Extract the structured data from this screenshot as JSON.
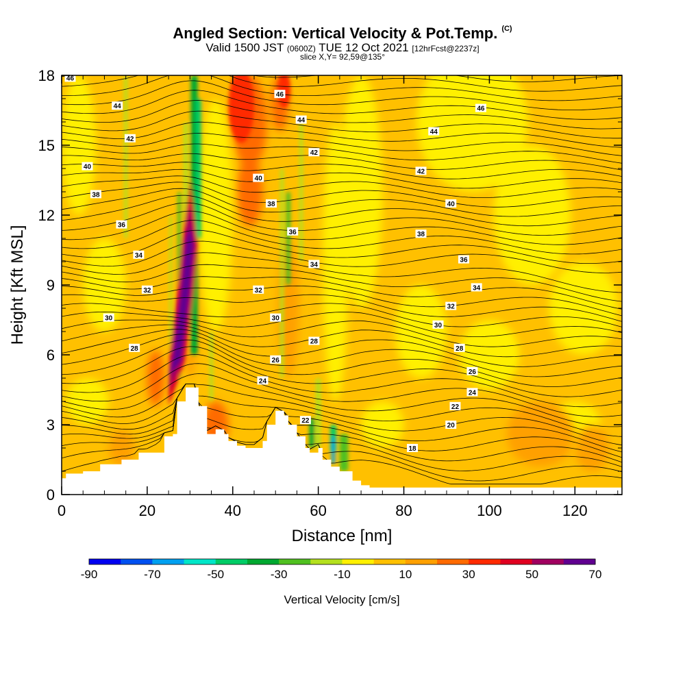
{
  "header": {
    "title": "Angled Section: Vertical Velocity & Pot.Temp.",
    "title_mark": "(C)",
    "valid_main": "Valid 1500 JST",
    "valid_z": "(0600Z)",
    "valid_date": "TUE 12 Oct 2021",
    "forecast": "[12hrFcst@2237z]",
    "slice": "slice X,Y= 92,59@135°"
  },
  "chart_data": {
    "type": "heatmap",
    "xlabel": "Distance [nm]",
    "ylabel": "Height [Kft MSL]",
    "xlim": [
      0,
      131
    ],
    "ylim": [
      0,
      18
    ],
    "xticks": [
      "0",
      "20",
      "40",
      "60",
      "80",
      "100",
      "120"
    ],
    "yticks": [
      "0",
      "3",
      "6",
      "9",
      "12",
      "15",
      "18"
    ],
    "xtick_values": [
      0,
      20,
      40,
      60,
      80,
      100,
      120
    ],
    "ytick_values": [
      0,
      3,
      6,
      9,
      12,
      15,
      18
    ],
    "colorbar": {
      "label": "Vertical Velocity [cm/s]",
      "tick_labels": [
        "-90",
        "-70",
        "-50",
        "-30",
        "-10",
        "10",
        "30",
        "50",
        "70"
      ],
      "bins": [
        {
          "from": -90,
          "to": -80,
          "color": "#0000f0"
        },
        {
          "from": -80,
          "to": -70,
          "color": "#0050f0"
        },
        {
          "from": -70,
          "to": -60,
          "color": "#00a0f0"
        },
        {
          "from": -60,
          "to": -50,
          "color": "#00e6c8"
        },
        {
          "from": -50,
          "to": -40,
          "color": "#00cc66"
        },
        {
          "from": -40,
          "to": -30,
          "color": "#00a830"
        },
        {
          "from": -30,
          "to": -20,
          "color": "#50c020"
        },
        {
          "from": -20,
          "to": -10,
          "color": "#b4e01e"
        },
        {
          "from": -10,
          "to": 0,
          "color": "#fff000"
        },
        {
          "from": 0,
          "to": 10,
          "color": "#ffc000"
        },
        {
          "from": 10,
          "to": 20,
          "color": "#ffa000"
        },
        {
          "from": 20,
          "to": 30,
          "color": "#ff6a00"
        },
        {
          "from": 30,
          "to": 40,
          "color": "#ff2a00"
        },
        {
          "from": 40,
          "to": 50,
          "color": "#e00020"
        },
        {
          "from": 50,
          "to": 60,
          "color": "#a00060"
        },
        {
          "from": 60,
          "to": 70,
          "color": "#600090"
        }
      ]
    },
    "terrain_nm_kft": [
      [
        0,
        0.7
      ],
      [
        1,
        0.9
      ],
      [
        5,
        1
      ],
      [
        9,
        1.3
      ],
      [
        14,
        1.5
      ],
      [
        17,
        1.5
      ],
      [
        18,
        1.8
      ],
      [
        22,
        1.8
      ],
      [
        24,
        2.5
      ],
      [
        26,
        2.6
      ],
      [
        27,
        4
      ],
      [
        29,
        4.6
      ],
      [
        31,
        4.6
      ],
      [
        32,
        3.8
      ],
      [
        34,
        2.6
      ],
      [
        36,
        2.8
      ],
      [
        38,
        2.6
      ],
      [
        39,
        2.3
      ],
      [
        41,
        2.1
      ],
      [
        43,
        2.0
      ],
      [
        45,
        2.0
      ],
      [
        47,
        2.3
      ],
      [
        48,
        3
      ],
      [
        50,
        3.6
      ],
      [
        52,
        3.4
      ],
      [
        53,
        3.0
      ],
      [
        55,
        2.5
      ],
      [
        57,
        2.0
      ],
      [
        58,
        1.8
      ],
      [
        60,
        2
      ],
      [
        61,
        1.5
      ],
      [
        63,
        1.2
      ],
      [
        65,
        1
      ],
      [
        68,
        0.6
      ],
      [
        70,
        0.4
      ],
      [
        72,
        0.3
      ],
      [
        131,
        0.3
      ]
    ],
    "updraft_core": {
      "x_nm": [
        25,
        27,
        29,
        30
      ],
      "y_kft": [
        4,
        6,
        9,
        11
      ],
      "max_w": 65
    },
    "isentropes_K": [
      18,
      20,
      22,
      24,
      26,
      28,
      30,
      32,
      34,
      36,
      38,
      40,
      42,
      44,
      46
    ],
    "isentrope_labels": [
      {
        "text": "46",
        "x": 2,
        "y": 17.9
      },
      {
        "text": "44",
        "x": 13,
        "y": 16.7
      },
      {
        "text": "42",
        "x": 16,
        "y": 15.3
      },
      {
        "text": "40",
        "x": 6,
        "y": 14.1
      },
      {
        "text": "38",
        "x": 8,
        "y": 12.9
      },
      {
        "text": "36",
        "x": 14,
        "y": 11.6
      },
      {
        "text": "34",
        "x": 18,
        "y": 10.3
      },
      {
        "text": "32",
        "x": 20,
        "y": 8.8
      },
      {
        "text": "30",
        "x": 11,
        "y": 7.6
      },
      {
        "text": "28",
        "x": 17,
        "y": 6.3
      },
      {
        "text": "46",
        "x": 51,
        "y": 17.2
      },
      {
        "text": "44",
        "x": 56,
        "y": 16.1
      },
      {
        "text": "42",
        "x": 59,
        "y": 14.7
      },
      {
        "text": "40",
        "x": 46,
        "y": 13.6
      },
      {
        "text": "38",
        "x": 49,
        "y": 12.5
      },
      {
        "text": "36",
        "x": 54,
        "y": 11.3
      },
      {
        "text": "34",
        "x": 59,
        "y": 9.9
      },
      {
        "text": "32",
        "x": 46,
        "y": 8.8
      },
      {
        "text": "30",
        "x": 50,
        "y": 7.6
      },
      {
        "text": "28",
        "x": 59,
        "y": 6.6
      },
      {
        "text": "26",
        "x": 50,
        "y": 5.8
      },
      {
        "text": "24",
        "x": 47,
        "y": 4.9
      },
      {
        "text": "22",
        "x": 57,
        "y": 3.2
      },
      {
        "text": "46",
        "x": 98,
        "y": 16.6
      },
      {
        "text": "44",
        "x": 87,
        "y": 15.6
      },
      {
        "text": "42",
        "x": 84,
        "y": 13.9
      },
      {
        "text": "40",
        "x": 91,
        "y": 12.5
      },
      {
        "text": "38",
        "x": 84,
        "y": 11.2
      },
      {
        "text": "36",
        "x": 94,
        "y": 10.1
      },
      {
        "text": "34",
        "x": 97,
        "y": 8.9
      },
      {
        "text": "32",
        "x": 91,
        "y": 8.1
      },
      {
        "text": "30",
        "x": 88,
        "y": 7.3
      },
      {
        "text": "28",
        "x": 93,
        "y": 6.3
      },
      {
        "text": "26",
        "x": 96,
        "y": 5.3
      },
      {
        "text": "24",
        "x": 96,
        "y": 4.4
      },
      {
        "text": "22",
        "x": 92,
        "y": 3.8
      },
      {
        "text": "20",
        "x": 91,
        "y": 3.0
      },
      {
        "text": "18",
        "x": 82,
        "y": 2.0
      }
    ]
  },
  "colors": {
    "background_field": "#ffc000",
    "terrain": "#ffffff",
    "contour": "#000000"
  }
}
